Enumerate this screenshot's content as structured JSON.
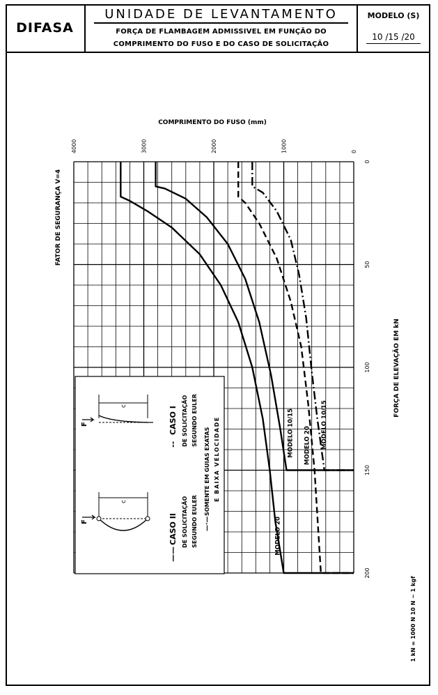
{
  "header": {
    "brand": "DIFASA",
    "title": "UNIDADE DE LEVANTAMENTO",
    "subtitle_line1": "FORÇA DE FLAMBAGEM ADMISSIVEL EM FUNÇÃO DO",
    "subtitle_line2": "COMPRIMENTO DO FUSO E DO CASO DE SOLICITAÇÃO",
    "model_label": "MODELO (S)",
    "model_value": "10 /15 /20"
  },
  "chart_data": {
    "type": "line",
    "x_axis_label": "COMPRIMENTO DO FUSO (mm)",
    "y_axis_label": "FORÇA DE ELEVAÇÃO EM kN",
    "safety_factor_label": "FATOR DE SEGURANÇA  V=4",
    "x_ticks": [
      "4000",
      "3000",
      "2000",
      "1000",
      "0"
    ],
    "y_ticks": [
      "0",
      "50",
      "100",
      "150",
      "200"
    ],
    "xlim": [
      4000,
      0
    ],
    "ylim": [
      0,
      200
    ],
    "grid": true,
    "series": [
      {
        "name": "MODELO 20",
        "style": "solid",
        "points": [
          [
            3330,
            0
          ],
          [
            3330,
            17
          ],
          [
            3200,
            19
          ],
          [
            2950,
            24
          ],
          [
            2600,
            32
          ],
          [
            2200,
            45
          ],
          [
            1900,
            60
          ],
          [
            1650,
            78
          ],
          [
            1450,
            100
          ],
          [
            1300,
            125
          ],
          [
            1200,
            150
          ],
          [
            1120,
            175
          ],
          [
            1000,
            200
          ],
          [
            0,
            200
          ]
        ]
      },
      {
        "name": "MODELO 10/15",
        "style": "solid",
        "points": [
          [
            2830,
            0
          ],
          [
            2830,
            12
          ],
          [
            2700,
            13
          ],
          [
            2400,
            18
          ],
          [
            2100,
            27
          ],
          [
            1800,
            40
          ],
          [
            1550,
            57
          ],
          [
            1350,
            78
          ],
          [
            1180,
            104
          ],
          [
            1050,
            130
          ],
          [
            960,
            150
          ],
          [
            0,
            150
          ]
        ]
      },
      {
        "name": "MODELO 20",
        "style": "dashed",
        "points": [
          [
            1650,
            0
          ],
          [
            1650,
            17
          ],
          [
            1550,
            20
          ],
          [
            1350,
            30
          ],
          [
            1100,
            47
          ],
          [
            900,
            68
          ],
          [
            750,
            90
          ],
          [
            650,
            118
          ],
          [
            560,
            150
          ],
          [
            470,
            200
          ],
          [
            0,
            200
          ]
        ]
      },
      {
        "name": "MODELO 10/15",
        "style": "dashdot",
        "points": [
          [
            1450,
            0
          ],
          [
            1450,
            12
          ],
          [
            1300,
            15
          ],
          [
            1100,
            24
          ],
          [
            900,
            38
          ],
          [
            780,
            55
          ],
          [
            680,
            76
          ],
          [
            600,
            102
          ],
          [
            520,
            125
          ],
          [
            420,
            150
          ],
          [
            0,
            150
          ]
        ]
      }
    ],
    "series_labels": [
      {
        "text": "MODELO 20",
        "at": [
          1060,
          182
        ]
      },
      {
        "text": "MODELO 10/15",
        "at": [
          880,
          132
        ]
      },
      {
        "text": "MODELO 20",
        "at": [
          640,
          138
        ]
      },
      {
        "text": "MODELO 10/15",
        "at": [
          400,
          128
        ]
      }
    ],
    "legend": {
      "case1_title": "CASO I",
      "case1_line1": "DE SOLICITAÇÃO",
      "case1_line2": "SEGUNDO EULER",
      "case1_marker": "--",
      "case2_title": "CASO II",
      "case2_line1": "DE SOLICITAÇÃO",
      "case2_line2": "SEGUNDO EULER",
      "case2_marker": "——",
      "note_line1": "SOMENTE EM GUIAS EXATAS",
      "note_line2": "E BAIXA VELOCIDADE",
      "note_marker": "—·—",
      "force_symbol": "F",
      "length_symbol": "c"
    },
    "units_note": "1 kN = 1000 N   10 N ~ 1 kgf"
  }
}
